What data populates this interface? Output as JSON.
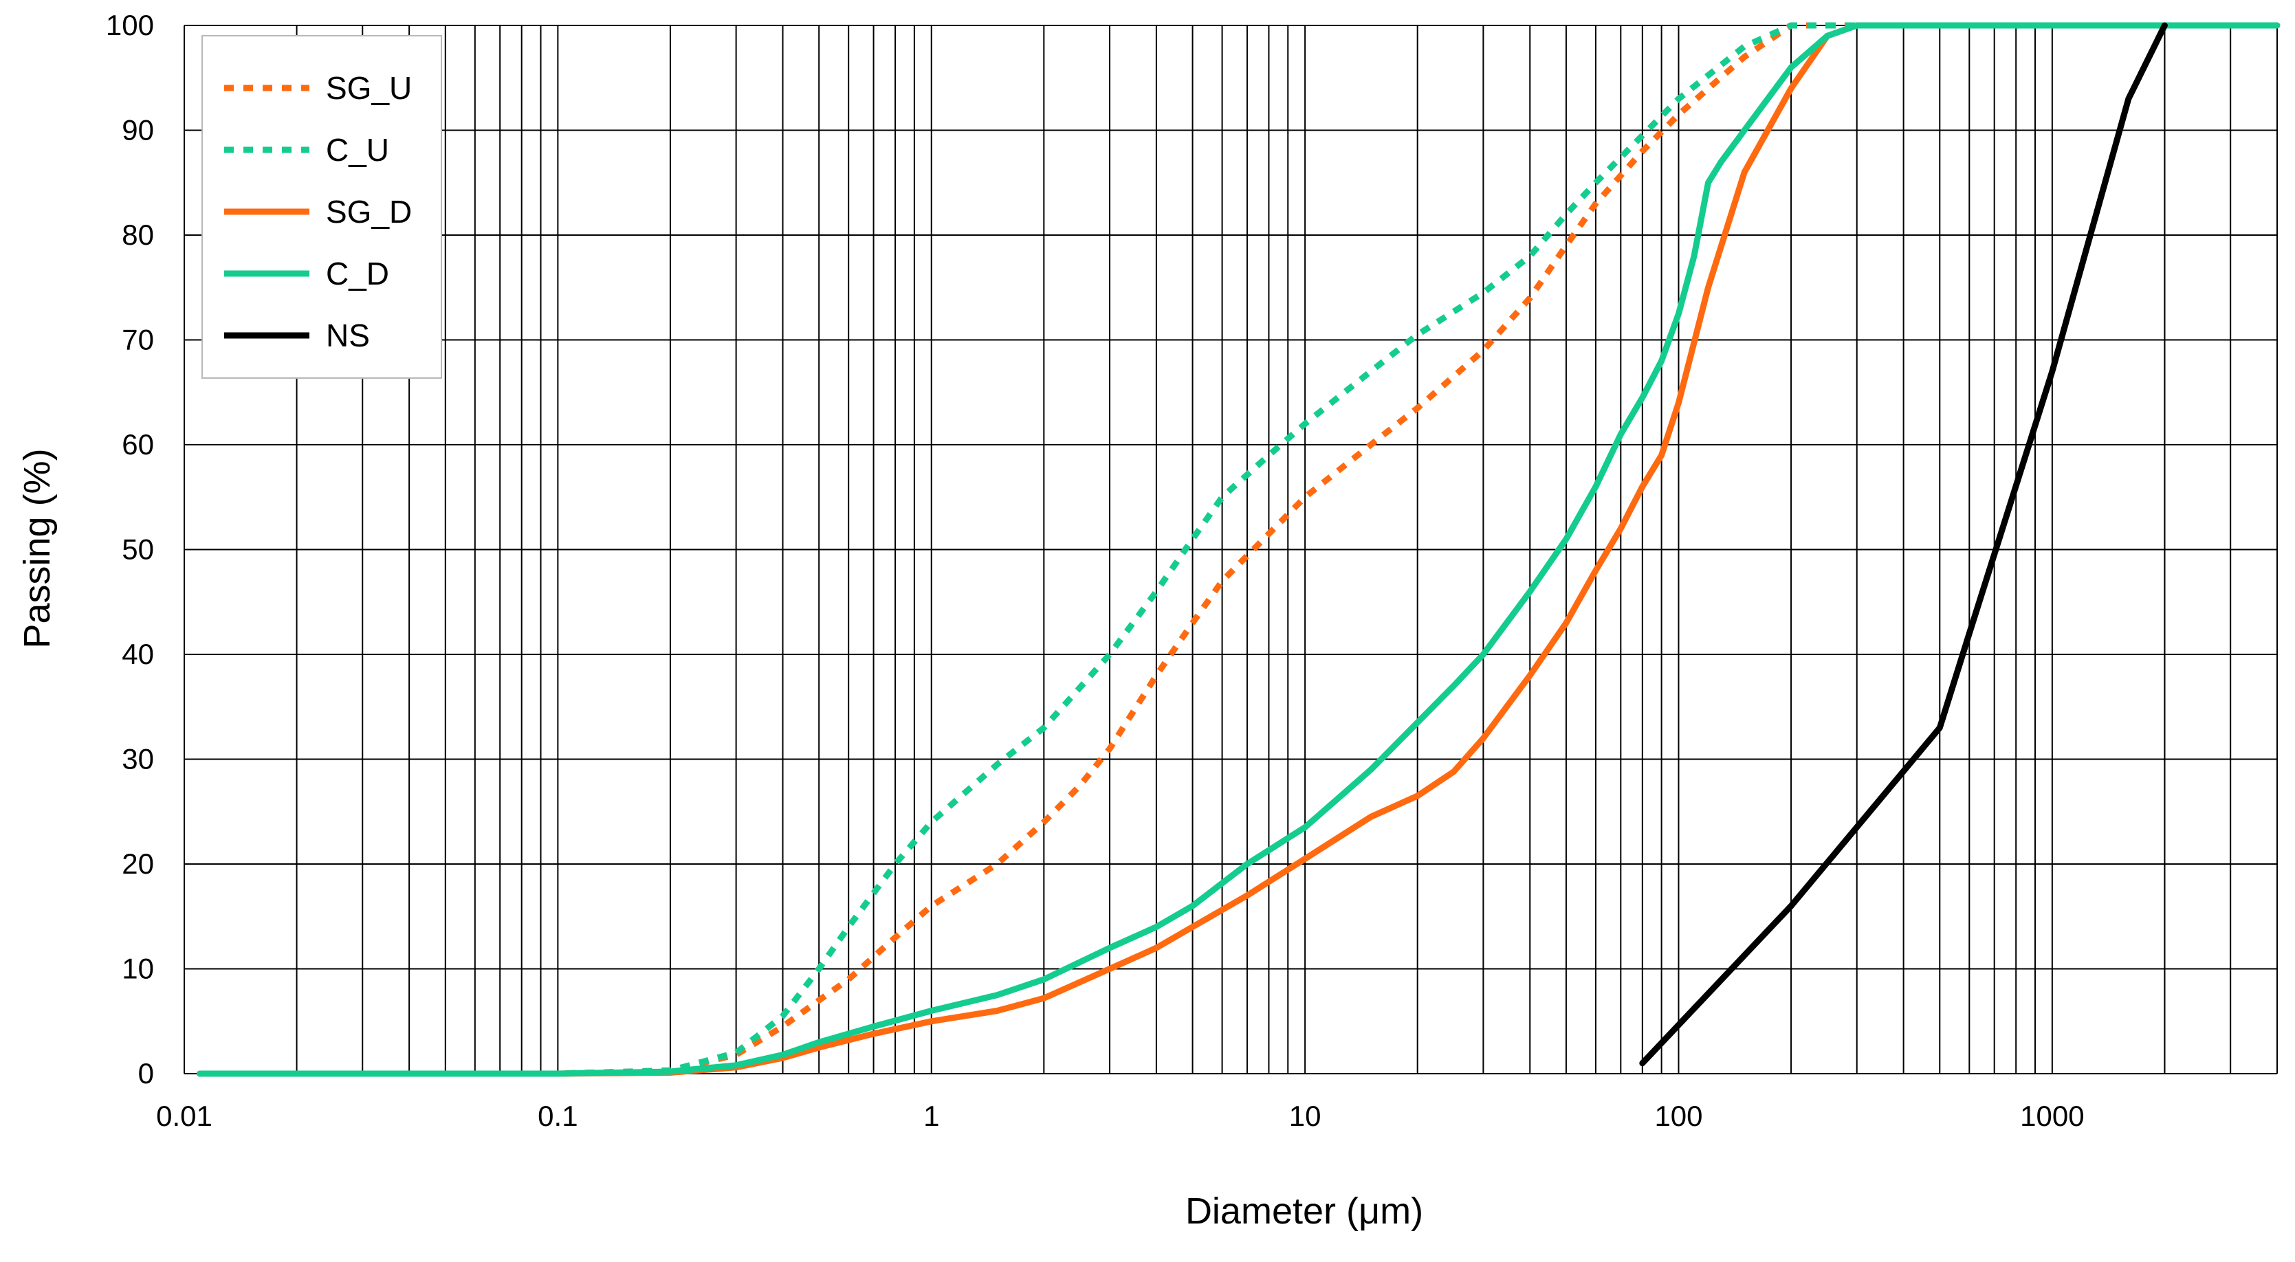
{
  "chart_data": {
    "type": "line",
    "title": "",
    "xlabel": "Diameter (μm)",
    "ylabel": "Passing (%)",
    "xscale": "log",
    "xlim": [
      0.01,
      4000
    ],
    "ylim": [
      0,
      100
    ],
    "grid": true,
    "legend_position": "top-left",
    "x_tick_labels": [
      "0.01",
      "0.1",
      "1",
      "10",
      "100",
      "1000"
    ],
    "y_tick_labels": [
      "0",
      "10",
      "20",
      "30",
      "40",
      "50",
      "60",
      "70",
      "80",
      "90",
      "100"
    ],
    "series": [
      {
        "name": "SG_U",
        "color": "#FF6A10",
        "dash": "dotted",
        "x": [
          0.011,
          0.1,
          0.2,
          0.3,
          0.4,
          0.5,
          0.6,
          0.8,
          1,
          1.5,
          2,
          2.5,
          3,
          4,
          5,
          6,
          8,
          10,
          15,
          20,
          30,
          40,
          50,
          60,
          80,
          100,
          150,
          200,
          300,
          4000
        ],
        "y": [
          0,
          0,
          0.3,
          1.8,
          4.5,
          7,
          9,
          13,
          16,
          20,
          24,
          27.5,
          31,
          38,
          43,
          47,
          51.5,
          55,
          60,
          63.5,
          69,
          74,
          79,
          83,
          88,
          91.5,
          97,
          100,
          100,
          100
        ]
      },
      {
        "name": "C_U",
        "color": "#14CC8F",
        "dash": "dotted",
        "x": [
          0.011,
          0.1,
          0.2,
          0.3,
          0.4,
          0.5,
          0.6,
          0.8,
          1,
          1.5,
          2,
          3,
          4,
          5,
          6,
          8,
          10,
          15,
          20,
          30,
          40,
          50,
          60,
          80,
          100,
          150,
          200,
          300,
          4000
        ],
        "y": [
          0,
          0,
          0.3,
          2,
          5.5,
          10,
          14,
          20,
          24,
          29.5,
          33,
          40,
          46,
          51,
          55,
          59,
          62,
          67,
          70.5,
          74.5,
          78,
          82,
          85,
          89.5,
          93,
          98,
          100,
          100,
          100
        ]
      },
      {
        "name": "SG_D",
        "color": "#FF6A10",
        "dash": "solid",
        "x": [
          0.011,
          0.1,
          0.2,
          0.3,
          0.4,
          0.5,
          0.7,
          1,
          1.5,
          2,
          3,
          4,
          5,
          7,
          10,
          15,
          20,
          25,
          30,
          40,
          50,
          60,
          70,
          80,
          90,
          100,
          120,
          150,
          200,
          250,
          300,
          4000
        ],
        "y": [
          0,
          0,
          0.1,
          0.6,
          1.5,
          2.5,
          3.8,
          5,
          6,
          7.2,
          10,
          12,
          14,
          17,
          20.5,
          24.5,
          26.5,
          28.8,
          32,
          38,
          43,
          48,
          52,
          56,
          59,
          64,
          75,
          86,
          94,
          99,
          100,
          100
        ]
      },
      {
        "name": "C_D",
        "color": "#14CC8F",
        "dash": "solid",
        "x": [
          0.011,
          0.1,
          0.2,
          0.3,
          0.4,
          0.5,
          0.7,
          1,
          1.5,
          2,
          3,
          4,
          5,
          7,
          10,
          15,
          20,
          25,
          30,
          40,
          50,
          60,
          70,
          80,
          90,
          100,
          110,
          120,
          130,
          150,
          200,
          250,
          300,
          4000
        ],
        "y": [
          0,
          0,
          0.2,
          0.8,
          1.8,
          3,
          4.5,
          6,
          7.5,
          9,
          12,
          14,
          16,
          20,
          23.5,
          29,
          33.5,
          37,
          40,
          46,
          51,
          56,
          61,
          64.5,
          68,
          72.5,
          78,
          85,
          87,
          90,
          96,
          99,
          100,
          100
        ]
      },
      {
        "name": "NS",
        "color": "#000000",
        "dash": "solid",
        "x": [
          80,
          200,
          500,
          600,
          1000,
          1600,
          2000
        ],
        "y": [
          1,
          16,
          33,
          42,
          67,
          93,
          100
        ]
      }
    ]
  }
}
